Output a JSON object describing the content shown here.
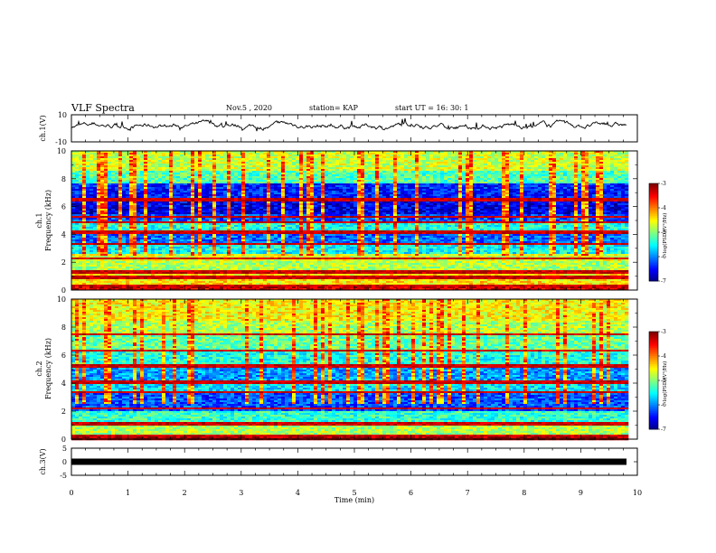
{
  "header": {
    "title": "VLF Spectra",
    "date": "Nov.5 , 2020",
    "station": "station= KAP",
    "start_ut": "start UT = 16: 30: 1"
  },
  "chart_data": [
    {
      "type": "line",
      "name": "ch1-waveform",
      "ylabel": "ch.1(V)",
      "ylim": [
        -10,
        10
      ],
      "yticks": [
        "10",
        "-10"
      ],
      "xlim": [
        0,
        10
      ],
      "mean_level": 2,
      "description_hidden": true
    },
    {
      "type": "heatmap",
      "name": "ch1-spectrogram",
      "ylabel_line1": "ch.1",
      "ylabel_line2": "Frequency (kHz)",
      "ylim": [
        0,
        10
      ],
      "yticks": [
        "0",
        "2",
        "4",
        "6",
        "8",
        "10"
      ],
      "xlim": [
        0,
        9.85
      ],
      "colorbar": {
        "label": "log(PSD)(V²/Hz)",
        "ticks": [
          "-3",
          "-4",
          "-5",
          "-6",
          "-7"
        ],
        "range": [
          -7,
          -3
        ]
      },
      "bands": [
        {
          "f": [
            0,
            0.4
          ],
          "v": -3.3
        },
        {
          "f": [
            0.4,
            1.2
          ],
          "v": -4.4
        },
        {
          "f": [
            1.2,
            2.1
          ],
          "v": -4.8
        },
        {
          "f": [
            2.1,
            2.6
          ],
          "v": -4.6
        },
        {
          "f": [
            2.6,
            3.4
          ],
          "v": -5.5
        },
        {
          "f": [
            3.4,
            4.0
          ],
          "v": -6.1
        },
        {
          "f": [
            4.0,
            4.8
          ],
          "v": -5.4
        },
        {
          "f": [
            4.8,
            5.4
          ],
          "v": -6.2
        },
        {
          "f": [
            5.4,
            6.6
          ],
          "v": -6.6
        },
        {
          "f": [
            6.6,
            7.6
          ],
          "v": -6.4
        },
        {
          "f": [
            7.6,
            8.6
          ],
          "v": -5.2
        },
        {
          "f": [
            8.6,
            10.0
          ],
          "v": -4.7
        }
      ],
      "lines_khz": [
        0.3,
        0.9,
        1.3,
        2.3,
        3.35,
        4.15,
        4.85,
        5.3,
        6.5
      ]
    },
    {
      "type": "heatmap",
      "name": "ch2-spectrogram",
      "ylabel_line1": "ch.2",
      "ylabel_line2": "Frequency (kHz)",
      "ylim": [
        0,
        10
      ],
      "yticks": [
        "0",
        "2",
        "4",
        "6",
        "8",
        "10"
      ],
      "xlim": [
        0,
        9.85
      ],
      "colorbar": {
        "label": "log(PSD)(V²/Hz)",
        "ticks": [
          "-3",
          "-4",
          "-5",
          "-6",
          "-7"
        ],
        "range": [
          -7,
          -3
        ]
      },
      "bands": [
        {
          "f": [
            0,
            0.3
          ],
          "v": -3.1
        },
        {
          "f": [
            0.3,
            1.1
          ],
          "v": -4.8
        },
        {
          "f": [
            1.1,
            2.1
          ],
          "v": -5.3
        },
        {
          "f": [
            2.1,
            3.4
          ],
          "v": -6.2
        },
        {
          "f": [
            3.4,
            4.1
          ],
          "v": -5.6
        },
        {
          "f": [
            4.1,
            5.2
          ],
          "v": -5.9
        },
        {
          "f": [
            5.2,
            6.3
          ],
          "v": -5.4
        },
        {
          "f": [
            6.3,
            7.5
          ],
          "v": -5.1
        },
        {
          "f": [
            7.5,
            8.5
          ],
          "v": -4.8
        },
        {
          "f": [
            8.5,
            10.0
          ],
          "v": -4.5
        }
      ],
      "lines_khz": [
        0.35,
        1.15,
        2.2,
        3.4,
        4.1,
        5.25,
        6.3,
        7.5
      ]
    },
    {
      "type": "line",
      "name": "ch3-waveform",
      "ylabel": "ch.3(V)",
      "ylim": [
        -5,
        5
      ],
      "yticks": [
        "5",
        "0",
        "-5"
      ],
      "xlim": [
        0,
        9.85
      ],
      "level": 0,
      "xlabel": "Time (min)",
      "xticks": [
        "0",
        "1",
        "2",
        "3",
        "4",
        "5",
        "6",
        "7",
        "8",
        "9",
        "10"
      ]
    }
  ]
}
